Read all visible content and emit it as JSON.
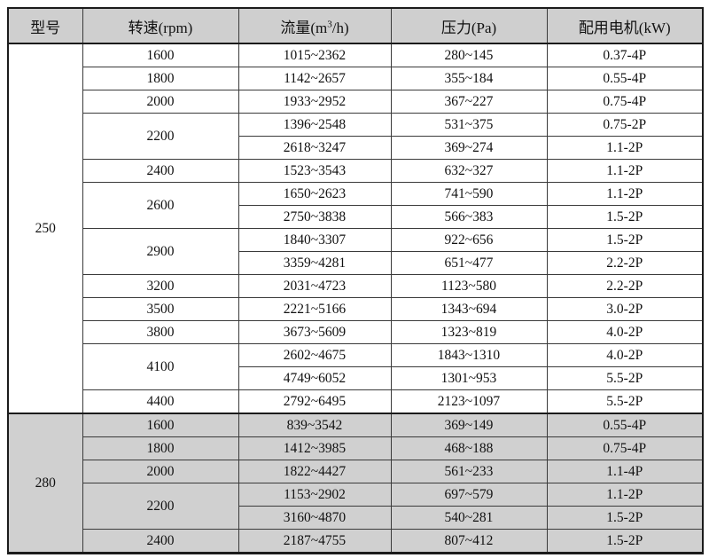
{
  "colors": {
    "header_bg": "#cfcfcf",
    "shaded_section_bg": "#d0d0d0",
    "row_bg": "#ffffff",
    "border_dark": "#1b1b1b",
    "border_inner": "#3a3a3a"
  },
  "table": {
    "headers": [
      {
        "label": "型号"
      },
      {
        "label": "转速(rpm)"
      },
      {
        "pre": "流量(m",
        "sup": "3",
        "post": "/h)"
      },
      {
        "label": "压力(Pa)"
      },
      {
        "label": "配用电机(kW)"
      }
    ],
    "sections": [
      {
        "model": "250",
        "shaded": false,
        "groups": [
          {
            "speed": "1600",
            "rows": [
              {
                "flow": "1015~2362",
                "pressure": "280~145",
                "motor": "0.37-4P"
              }
            ]
          },
          {
            "speed": "1800",
            "rows": [
              {
                "flow": "1142~2657",
                "pressure": "355~184",
                "motor": "0.55-4P"
              }
            ]
          },
          {
            "speed": "2000",
            "rows": [
              {
                "flow": "1933~2952",
                "pressure": "367~227",
                "motor": "0.75-4P"
              }
            ]
          },
          {
            "speed": "2200",
            "rows": [
              {
                "flow": "1396~2548",
                "pressure": "531~375",
                "motor": "0.75-2P"
              },
              {
                "flow": "2618~3247",
                "pressure": "369~274",
                "motor": "1.1-2P"
              }
            ]
          },
          {
            "speed": "2400",
            "rows": [
              {
                "flow": "1523~3543",
                "pressure": "632~327",
                "motor": "1.1-2P"
              }
            ]
          },
          {
            "speed": "2600",
            "rows": [
              {
                "flow": "1650~2623",
                "pressure": "741~590",
                "motor": "1.1-2P"
              },
              {
                "flow": "2750~3838",
                "pressure": "566~383",
                "motor": "1.5-2P"
              }
            ]
          },
          {
            "speed": "2900",
            "rows": [
              {
                "flow": "1840~3307",
                "pressure": "922~656",
                "motor": "1.5-2P"
              },
              {
                "flow": "3359~4281",
                "pressure": "651~477",
                "motor": "2.2-2P"
              }
            ]
          },
          {
            "speed": "3200",
            "rows": [
              {
                "flow": "2031~4723",
                "pressure": "1123~580",
                "motor": "2.2-2P"
              }
            ]
          },
          {
            "speed": "3500",
            "rows": [
              {
                "flow": "2221~5166",
                "pressure": "1343~694",
                "motor": "3.0-2P"
              }
            ]
          },
          {
            "speed": "3800",
            "rows": [
              {
                "flow": "3673~5609",
                "pressure": "1323~819",
                "motor": "4.0-2P"
              }
            ]
          },
          {
            "speed": "4100",
            "rows": [
              {
                "flow": "2602~4675",
                "pressure": "1843~1310",
                "motor": "4.0-2P"
              },
              {
                "flow": "4749~6052",
                "pressure": "1301~953",
                "motor": "5.5-2P"
              }
            ]
          },
          {
            "speed": "4400",
            "rows": [
              {
                "flow": "2792~6495",
                "pressure": "2123~1097",
                "motor": "5.5-2P"
              }
            ]
          }
        ]
      },
      {
        "model": "280",
        "shaded": true,
        "groups": [
          {
            "speed": "1600",
            "rows": [
              {
                "flow": "839~3542",
                "pressure": "369~149",
                "motor": "0.55-4P"
              }
            ]
          },
          {
            "speed": "1800",
            "rows": [
              {
                "flow": "1412~3985",
                "pressure": "468~188",
                "motor": "0.75-4P"
              }
            ]
          },
          {
            "speed": "2000",
            "rows": [
              {
                "flow": "1822~4427",
                "pressure": "561~233",
                "motor": "1.1-4P"
              }
            ]
          },
          {
            "speed": "2200",
            "rows": [
              {
                "flow": "1153~2902",
                "pressure": "697~579",
                "motor": "1.1-2P"
              },
              {
                "flow": "3160~4870",
                "pressure": "540~281",
                "motor": "1.5-2P"
              }
            ]
          },
          {
            "speed": "2400",
            "rows": [
              {
                "flow": "2187~4755",
                "pressure": "807~412",
                "motor": "1.5-2P"
              }
            ]
          }
        ]
      }
    ]
  }
}
